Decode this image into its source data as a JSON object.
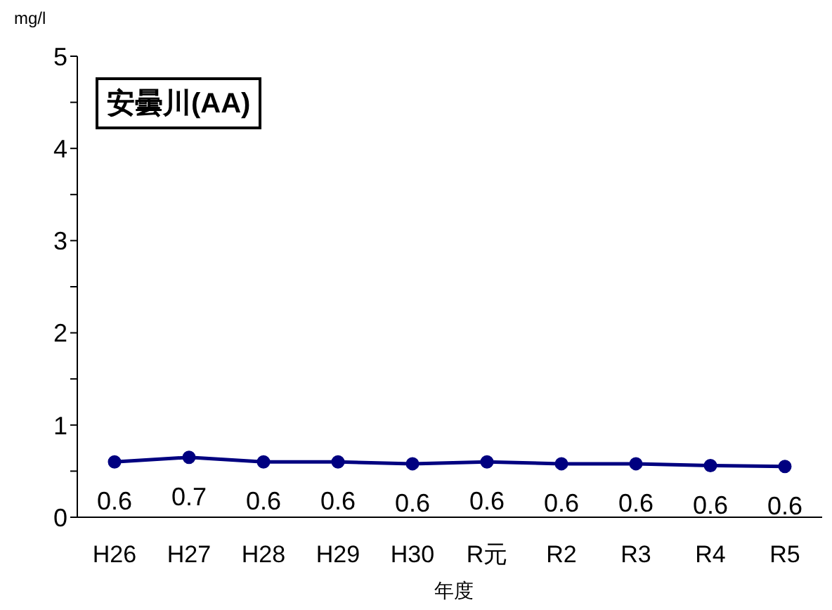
{
  "chart_data": {
    "type": "line",
    "title": "安曇川(AA)",
    "ylabel": "mg/l",
    "xlabel": "年度",
    "categories": [
      "H26",
      "H27",
      "H28",
      "H29",
      "H30",
      "R元",
      "R2",
      "R3",
      "R4",
      "R5"
    ],
    "series": [
      {
        "color": "#000080",
        "values": [
          0.6,
          0.65,
          0.6,
          0.6,
          0.58,
          0.6,
          0.58,
          0.58,
          0.56,
          0.55
        ]
      }
    ],
    "value_labels": [
      "0.6",
      "0.7",
      "0.6",
      "0.6",
      "0.6",
      "0.6",
      "0.6",
      "0.6",
      "0.6",
      "0.6"
    ],
    "ylim": [
      0,
      5
    ],
    "yticks": [
      0,
      {
        "value": 0.5,
        "label": null
      },
      1,
      {
        "value": 1.5,
        "label": null
      },
      2,
      {
        "value": 2.5,
        "label": null
      },
      3,
      {
        "value": 3.5,
        "label": null
      },
      4,
      {
        "value": 4.5,
        "label": null
      },
      5
    ],
    "marker": "circle",
    "line_style": "solid",
    "grid": false,
    "legend": false
  }
}
